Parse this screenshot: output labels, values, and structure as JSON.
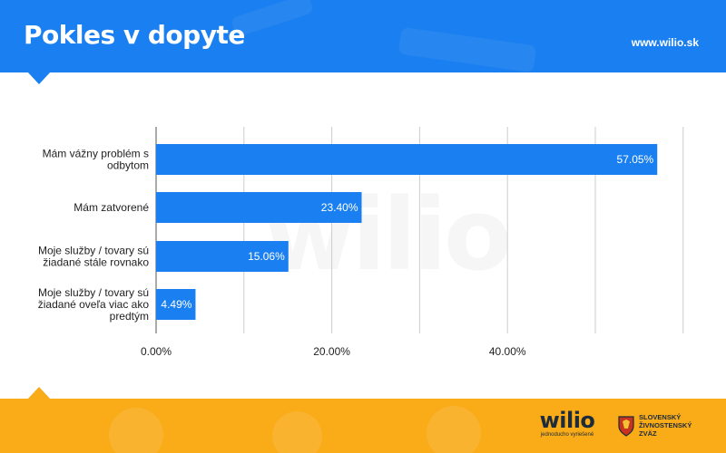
{
  "header": {
    "title": "Pokles v dopyte",
    "url": "www.wilio.sk"
  },
  "footer": {
    "brand_name": "wilio",
    "brand_tagline": "jednoducho vyriešené",
    "partner_lines": [
      "SLOVENSKÝ",
      "ŽIVNOSTENSKÝ",
      "ZVÄZ"
    ]
  },
  "watermark": "wilio",
  "colors": {
    "header_bg": "#1a7ff0",
    "footer_bg": "#f9ab18",
    "bar": "#1a7ff0",
    "grid": "#cccccc",
    "text": "#222222"
  },
  "chart_data": {
    "type": "bar",
    "orientation": "horizontal",
    "categories": [
      [
        "Mám vážny problém s",
        "odbytom"
      ],
      [
        "Mám zatvorené"
      ],
      [
        "Moje služby / tovary sú",
        "žiadané stále rovnako"
      ],
      [
        "Moje služby / tovary sú",
        "žiadané oveľa viac ako",
        "predtým"
      ]
    ],
    "values": [
      57.05,
      23.4,
      15.06,
      4.49
    ],
    "value_labels": [
      "57.05%",
      "23.40%",
      "15.06%",
      "4.49%"
    ],
    "xticks": [
      0,
      20,
      40
    ],
    "xtick_labels": [
      "0.00%",
      "20.00%",
      "40.00%"
    ],
    "xlim": [
      0,
      60
    ],
    "grid": true,
    "title": "",
    "xlabel": "",
    "ylabel": ""
  }
}
